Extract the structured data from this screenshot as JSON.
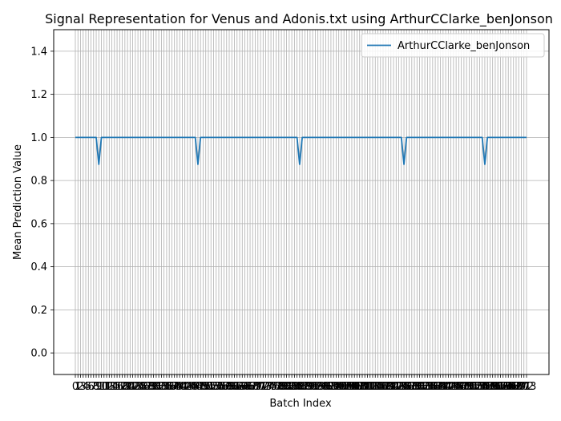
{
  "chart_data": {
    "type": "line",
    "title": "Signal Representation for Venus and Adonis.txt using ArthurCClarke_benJonson",
    "xlabel": "Batch Index",
    "ylabel": "Mean Prediction Value",
    "xlim": [
      0,
      173
    ],
    "ylim": [
      -0.1,
      1.5
    ],
    "yticks": [
      0.0,
      0.2,
      0.4,
      0.6,
      0.8,
      1.0,
      1.2,
      1.4
    ],
    "x_tick_step": 1,
    "grid": true,
    "legend_position": "top-right",
    "series": [
      {
        "name": "ArthurCClarke_benJonson",
        "color": "#1f77b4",
        "baseline": 1.0,
        "dips": [
          {
            "x": 9,
            "y": 0.875
          },
          {
            "x": 47,
            "y": 0.875
          },
          {
            "x": 86,
            "y": 0.875
          },
          {
            "x": 126,
            "y": 0.875
          },
          {
            "x": 157,
            "y": 0.875
          }
        ],
        "x_start": 0,
        "x_end": 173
      }
    ]
  }
}
